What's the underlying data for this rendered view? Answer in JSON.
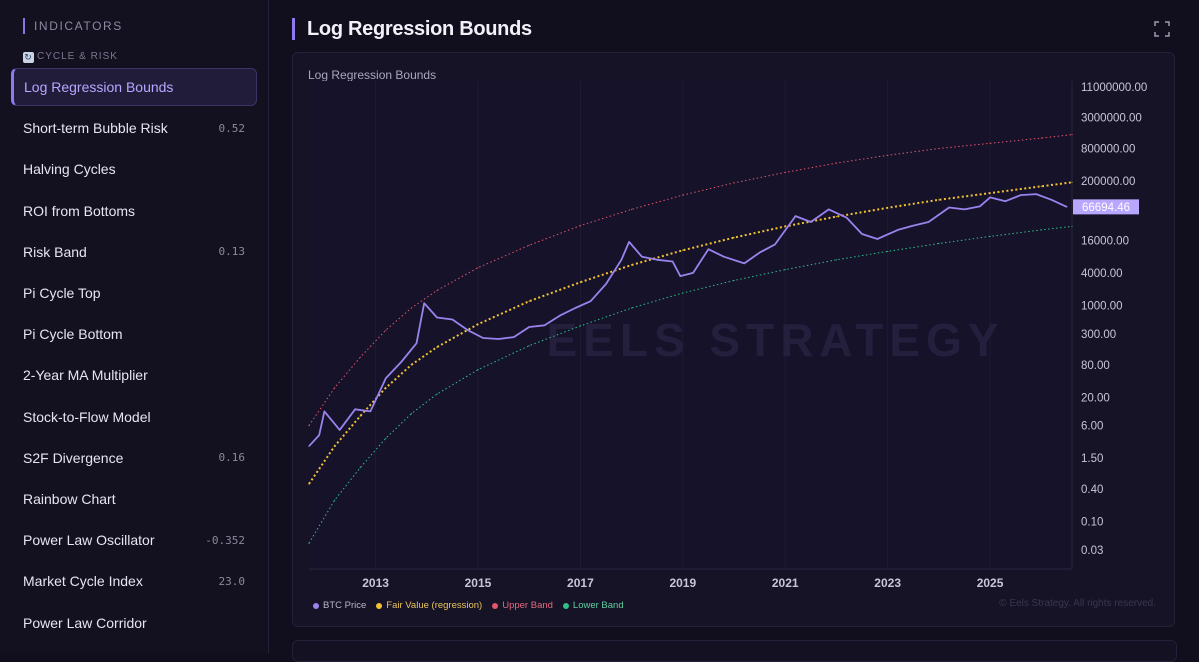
{
  "sidebar": {
    "header": "INDICATORS",
    "group": "CYCLE & RISK",
    "items": [
      {
        "label": "Log Regression Bounds",
        "value": "",
        "active": true
      },
      {
        "label": "Short-term Bubble Risk",
        "value": "0.52"
      },
      {
        "label": "Halving Cycles",
        "value": ""
      },
      {
        "label": "ROI from Bottoms",
        "value": ""
      },
      {
        "label": "Risk Band",
        "value": "0.13"
      },
      {
        "label": "Pi Cycle Top",
        "value": ""
      },
      {
        "label": "Pi Cycle Bottom",
        "value": ""
      },
      {
        "label": "2-Year MA Multiplier",
        "value": ""
      },
      {
        "label": "Stock-to-Flow Model",
        "value": ""
      },
      {
        "label": "S2F Divergence",
        "value": "0.16"
      },
      {
        "label": "Rainbow Chart",
        "value": ""
      },
      {
        "label": "Power Law Oscillator",
        "value": "-0.352"
      },
      {
        "label": "Market Cycle Index",
        "value": "23.0"
      },
      {
        "label": "Power Law Corridor",
        "value": ""
      }
    ]
  },
  "main": {
    "title": "Log Regression Bounds",
    "copyright": "© Eels Strategy. All rights reserved.",
    "watermark": "EELS STRATEGY"
  },
  "colors": {
    "accent": "#8f78f0",
    "price": "#9a83ec",
    "fair": "#f2c230",
    "upper": "#e2566c",
    "lower": "#2fbf8a"
  },
  "chart_data": {
    "type": "line",
    "title": "Log Regression Bounds",
    "y_scale": "log",
    "x_range": [
      2011.7,
      2026.6
    ],
    "y_tick_labels": [
      "11000000.00",
      "3000000.00",
      "800000.00",
      "200000.00",
      "16000.00",
      "4000.00",
      "1000.00",
      "300.00",
      "80.00",
      "20.00",
      "6.00",
      "1.50",
      "0.40",
      "0.10",
      "0.03"
    ],
    "x_tick_labels": [
      "2013",
      "2015",
      "2017",
      "2019",
      "2021",
      "2023",
      "2025"
    ],
    "last_price_label": "66694.46",
    "legend": [
      "BTC Price",
      "Fair Value (regression)",
      "Upper Band",
      "Lower Band"
    ],
    "series": [
      {
        "name": "BTC Price",
        "x": [
          2011.7,
          2011.9,
          2012.0,
          2012.3,
          2012.6,
          2012.9,
          2013.2,
          2013.5,
          2013.8,
          2013.95,
          2014.2,
          2014.5,
          2014.8,
          2015.1,
          2015.4,
          2015.7,
          2016.0,
          2016.3,
          2016.6,
          2016.9,
          2017.2,
          2017.5,
          2017.8,
          2017.95,
          2018.2,
          2018.5,
          2018.8,
          2018.95,
          2019.2,
          2019.5,
          2019.8,
          2020.2,
          2020.5,
          2020.8,
          2021.2,
          2021.5,
          2021.85,
          2022.2,
          2022.5,
          2022.8,
          2023.2,
          2023.5,
          2023.8,
          2024.2,
          2024.5,
          2024.8,
          2025.0,
          2025.3,
          2025.6,
          2025.9,
          2026.2,
          2026.5
        ],
        "values": [
          2.5,
          4,
          11,
          5,
          12,
          11,
          45,
          90,
          200,
          1100,
          600,
          550,
          350,
          250,
          240,
          260,
          400,
          430,
          650,
          900,
          1200,
          2500,
          7000,
          15000,
          8000,
          7000,
          6500,
          3500,
          4000,
          11000,
          8000,
          6000,
          9500,
          13500,
          45000,
          35000,
          60000,
          42000,
          21000,
          17000,
          25000,
          30000,
          35000,
          65000,
          60000,
          68000,
          100000,
          85000,
          110000,
          115000,
          90000,
          66694.46
        ]
      },
      {
        "name": "Fair Value (regression)",
        "x": [
          2011.7,
          2012.2,
          2012.7,
          2013.2,
          2013.7,
          2014.2,
          2015.0,
          2016.0,
          2017.0,
          2018.0,
          2019.0,
          2020.0,
          2021.0,
          2022.0,
          2023.0,
          2024.0,
          2025.0,
          2026.0,
          2026.6
        ],
        "values": [
          0.5,
          2.5,
          9,
          30,
          80,
          170,
          450,
          1200,
          2700,
          5600,
          10500,
          18000,
          29000,
          44000,
          64000,
          90000,
          120000,
          160000,
          190000
        ]
      },
      {
        "name": "Upper Band",
        "x": [
          2011.7,
          2012.2,
          2012.7,
          2013.2,
          2013.7,
          2014.2,
          2015.0,
          2016.0,
          2017.0,
          2018.0,
          2019.0,
          2020.0,
          2021.0,
          2022.0,
          2023.0,
          2024.0,
          2025.0,
          2026.0,
          2026.6
        ],
        "values": [
          6,
          30,
          110,
          350,
          900,
          1900,
          5000,
          13000,
          30000,
          60000,
          110000,
          185000,
          290000,
          430000,
          600000,
          800000,
          1000000,
          1250000,
          1450000
        ]
      },
      {
        "name": "Lower Band",
        "x": [
          2011.7,
          2012.2,
          2012.7,
          2013.2,
          2013.7,
          2014.2,
          2015.0,
          2016.0,
          2017.0,
          2018.0,
          2019.0,
          2020.0,
          2021.0,
          2022.0,
          2023.0,
          2024.0,
          2025.0,
          2026.0,
          2026.6
        ],
        "values": [
          0.04,
          0.25,
          1.0,
          3.5,
          10,
          23,
          65,
          180,
          420,
          900,
          1700,
          2900,
          4600,
          7000,
          10000,
          14000,
          19000,
          25000,
          29000
        ]
      }
    ]
  }
}
